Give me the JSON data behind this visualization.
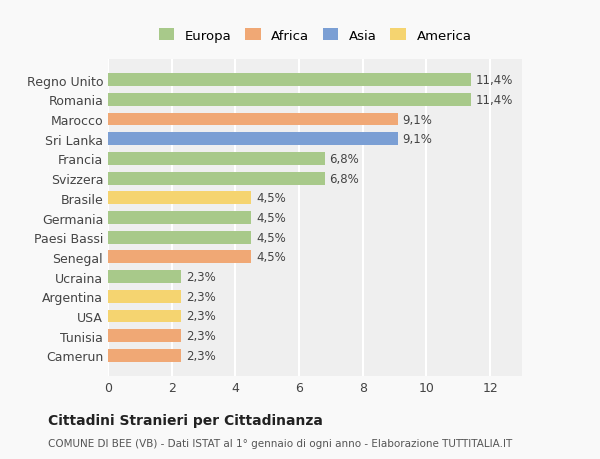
{
  "categories": [
    "Camerun",
    "Tunisia",
    "USA",
    "Argentina",
    "Ucraina",
    "Senegal",
    "Paesi Bassi",
    "Germania",
    "Brasile",
    "Svizzera",
    "Francia",
    "Sri Lanka",
    "Marocco",
    "Romania",
    "Regno Unito"
  ],
  "values": [
    2.3,
    2.3,
    2.3,
    2.3,
    2.3,
    4.5,
    4.5,
    4.5,
    4.5,
    6.8,
    6.8,
    9.1,
    9.1,
    11.4,
    11.4
  ],
  "labels": [
    "2,3%",
    "2,3%",
    "2,3%",
    "2,3%",
    "2,3%",
    "4,5%",
    "4,5%",
    "4,5%",
    "4,5%",
    "6,8%",
    "6,8%",
    "9,1%",
    "9,1%",
    "11,4%",
    "11,4%"
  ],
  "colors": [
    "#f0a875",
    "#f0a875",
    "#f5d470",
    "#f5d470",
    "#a8c98a",
    "#f0a875",
    "#a8c98a",
    "#a8c98a",
    "#f5d470",
    "#a8c98a",
    "#a8c98a",
    "#7b9fd4",
    "#f0a875",
    "#a8c98a",
    "#a8c98a"
  ],
  "legend_labels": [
    "Europa",
    "Africa",
    "Asia",
    "America"
  ],
  "legend_colors": [
    "#a8c98a",
    "#f0a875",
    "#7b9fd4",
    "#f5d470"
  ],
  "title": "Cittadini Stranieri per Cittadinanza",
  "subtitle": "COMUNE DI BEE (VB) - Dati ISTAT al 1° gennaio di ogni anno - Elaborazione TUTTITALIA.IT",
  "xlim": [
    0,
    13
  ],
  "xticks": [
    0,
    2,
    4,
    6,
    8,
    10,
    12
  ],
  "background_color": "#f9f9f9",
  "bar_background": "#efefef",
  "grid_color": "#ffffff"
}
